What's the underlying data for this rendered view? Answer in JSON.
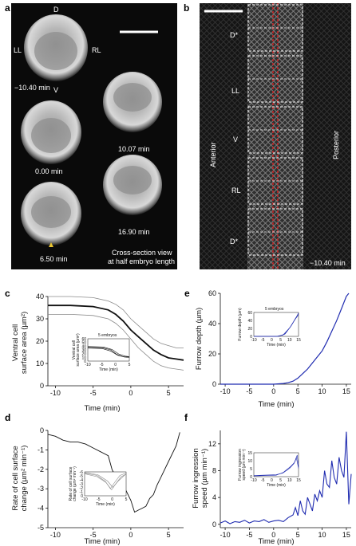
{
  "panel_a": {
    "label": "a",
    "orientation": {
      "dorsal": "D",
      "ventral": "V",
      "left": "LL",
      "right": "RL"
    },
    "frames": [
      {
        "time_label": "−10.40 min"
      },
      {
        "time_label": "0.00 min"
      },
      {
        "time_label": "6.50 min"
      },
      {
        "time_label": "10.07 min"
      },
      {
        "time_label": "16.90 min"
      }
    ],
    "caption_line1": "Cross-section view",
    "caption_line2": "at half embryo length"
  },
  "panel_b": {
    "label": "b",
    "side_left": "Anterior",
    "side_right": "Posterior",
    "rows": [
      "D*",
      "LL",
      "V",
      "RL",
      "D*"
    ],
    "time_label": "−10.40 min"
  },
  "panel_c": {
    "label": "c",
    "chart_data": {
      "type": "line",
      "ylabel_line1": "Ventral cell",
      "ylabel_line2": "surface area (µm²)",
      "xlabel": "Time (min)",
      "xlim": [
        -11,
        7
      ],
      "ylim": [
        0,
        40
      ],
      "xticks": [
        -10,
        -5,
        0,
        5
      ],
      "yticks": [
        0,
        10,
        20,
        30,
        40
      ],
      "series": [
        {
          "x": [
            -11,
            -8,
            -5,
            -3,
            -2,
            -1,
            0,
            1,
            2,
            3,
            4,
            5,
            6,
            7
          ],
          "values": [
            36,
            36,
            35.5,
            34,
            32,
            29,
            25,
            22,
            19,
            16,
            14,
            12.5,
            12,
            11.5
          ]
        },
        {
          "x": [
            -11,
            -8,
            -5,
            -3,
            -2,
            -1,
            0,
            1,
            2,
            3,
            4,
            5,
            6,
            7
          ],
          "values": [
            40,
            40,
            39.5,
            38,
            36.5,
            34,
            30,
            27,
            24,
            21,
            19,
            18,
            17,
            17
          ]
        },
        {
          "x": [
            -11,
            -8,
            -5,
            -3,
            -2,
            -1,
            0,
            1,
            2,
            3,
            4,
            5,
            6,
            7
          ],
          "values": [
            32,
            32,
            31.5,
            30,
            28,
            25,
            21,
            17,
            14,
            11,
            9,
            8,
            7.5,
            7
          ]
        }
      ],
      "inset": {
        "title": "5 embryos",
        "ylabel_line1": "Ventral cell",
        "ylabel_line2": "surface area (µm²)",
        "xlabel": "Time (min)",
        "xticks": [
          -10,
          -5,
          0,
          5
        ],
        "yticks": [
          0,
          10,
          20,
          30,
          40,
          50,
          60
        ]
      }
    }
  },
  "panel_d": {
    "label": "d",
    "chart_data": {
      "type": "line",
      "ylabel_line1": "Rate of cell surface",
      "ylabel_line2": "change (µm² min⁻¹)",
      "xlabel": "Time (min)",
      "xlim": [
        -11,
        7
      ],
      "ylim": [
        -5,
        0
      ],
      "xticks": [
        -10,
        -5,
        0,
        5
      ],
      "yticks": [
        0,
        -1,
        -2,
        -3,
        -4,
        -5
      ],
      "series": [
        {
          "x": [
            -11,
            -10,
            -9,
            -8,
            -7,
            -6,
            -5,
            -4,
            -3,
            -2.5,
            -2,
            -1,
            0,
            0.5,
            1,
            1.5,
            2,
            2.5,
            3,
            3.5,
            4,
            5,
            6,
            6.5
          ],
          "values": [
            -0.2,
            -0.3,
            -0.5,
            -0.6,
            -0.6,
            -0.7,
            -0.9,
            -1.1,
            -1.3,
            -2.0,
            -2.4,
            -2.8,
            -3.6,
            -4.2,
            -4.1,
            -4.0,
            -3.9,
            -3.5,
            -3.3,
            -2.8,
            -2.4,
            -1.6,
            -0.8,
            -0.1
          ]
        }
      ],
      "inset": {
        "ylabel_line1": "Rate of cell surface",
        "ylabel_line2": "change (µm² min⁻¹)",
        "xlabel": "Time (min)",
        "xticks": [
          -10,
          -5,
          0,
          5
        ],
        "yticks": [
          0,
          -1,
          -2,
          -3,
          -4,
          -5,
          -6
        ]
      }
    }
  },
  "panel_e": {
    "label": "e",
    "chart_data": {
      "type": "line",
      "ylabel": "Furrow depth (µm)",
      "xlabel": "Time (min)",
      "xlim": [
        -11,
        16
      ],
      "ylim": [
        0,
        60
      ],
      "xticks": [
        -10,
        -5,
        0,
        5,
        10,
        15
      ],
      "yticks": [
        0,
        20,
        40,
        60
      ],
      "series": [
        {
          "x": [
            -11,
            -5,
            0,
            2,
            3,
            4,
            5,
            6,
            7,
            8,
            9,
            10,
            11,
            12,
            13,
            14,
            15,
            15.5
          ],
          "values": [
            0,
            0,
            0,
            0.5,
            1,
            2,
            4,
            7,
            10,
            14,
            18,
            22,
            28,
            35,
            42,
            50,
            58,
            60
          ]
        }
      ],
      "inset": {
        "title": "5 embryos",
        "ylabel": "Furrow depth (µm)",
        "xlabel": "Time (min)",
        "xticks": [
          -10,
          -5,
          0,
          5,
          10,
          15
        ],
        "yticks": [
          0,
          20,
          40,
          60
        ]
      }
    }
  },
  "panel_f": {
    "label": "f",
    "chart_data": {
      "type": "line",
      "ylabel_line1": "Furrow ingression",
      "ylabel_line2": "speed (µm min⁻¹)",
      "xlabel": "Time (min)",
      "xlim": [
        -11,
        16
      ],
      "ylim": [
        -0.5,
        14
      ],
      "xticks": [
        -10,
        -5,
        0,
        5,
        10,
        15
      ],
      "yticks": [
        0,
        4,
        8,
        12
      ],
      "series": [
        {
          "x": [
            -11,
            -10,
            -9,
            -8,
            -7,
            -6,
            -5,
            -4,
            -3,
            -2,
            -1,
            0,
            1,
            2,
            3,
            4,
            4.5,
            5,
            5.5,
            6,
            6.5,
            7,
            7.5,
            8,
            8.5,
            9,
            9.5,
            10,
            10.5,
            11,
            11.5,
            12,
            12.5,
            13,
            13.5,
            14,
            14.5,
            15,
            15.5,
            16
          ],
          "values": [
            0.2,
            0.5,
            0.1,
            0.4,
            0.3,
            0.6,
            0.2,
            0.5,
            0.4,
            0.7,
            0.3,
            0.5,
            0.6,
            0.4,
            1.0,
            1.4,
            2.5,
            1.3,
            3.5,
            2.0,
            1.5,
            4.0,
            3.0,
            2.0,
            4.5,
            3.5,
            5.0,
            4.0,
            8.0,
            6.0,
            5.5,
            9.5,
            7.0,
            6.0,
            10.0,
            8.0,
            7.0,
            13.8,
            3.0,
            7.5
          ]
        }
      ],
      "inset": {
        "ylabel_line1": "Furrow ingression",
        "ylabel_line2": "speed (µm min⁻¹)",
        "xlabel": "Time (min)",
        "xticks": [
          -10,
          -5,
          0,
          5,
          10,
          15
        ],
        "yticks": [
          0,
          5,
          10,
          15
        ]
      }
    }
  },
  "colors": {
    "blue": "#1f2bb0",
    "black": "#111111",
    "gray": "#8a8a8a",
    "red": "#cc2222"
  }
}
